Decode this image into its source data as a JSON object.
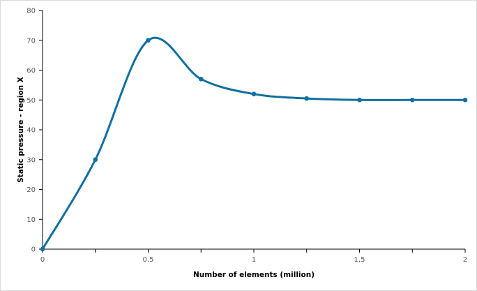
{
  "chart_data": {
    "type": "line",
    "title": "",
    "xlabel": "Number of elements (million)",
    "ylabel": "Static pressure - region X",
    "x": [
      0,
      0.25,
      0.5,
      0.75,
      1,
      1.25,
      1.5,
      1.75,
      2
    ],
    "series": [
      {
        "name": "Static pressure",
        "values": [
          0,
          30,
          70,
          57,
          52,
          50.5,
          50,
          50,
          50
        ],
        "color": "#1070a0",
        "smooth": true,
        "markers": true
      }
    ],
    "xlim": [
      0,
      2
    ],
    "ylim": [
      0,
      80
    ],
    "x_ticks": [
      "0",
      "0,5",
      "1",
      "1,5",
      "2"
    ],
    "x_tick_values": [
      0,
      0.5,
      1,
      1.5,
      2
    ],
    "x_minor_ticks": [
      0.25,
      0.75,
      1.25,
      1.75
    ],
    "y_ticks": [
      "0",
      "10",
      "20",
      "30",
      "40",
      "50",
      "60",
      "70",
      "80"
    ],
    "y_tick_values": [
      0,
      10,
      20,
      30,
      40,
      50,
      60,
      70,
      80
    ],
    "grid": false,
    "legend": null
  }
}
